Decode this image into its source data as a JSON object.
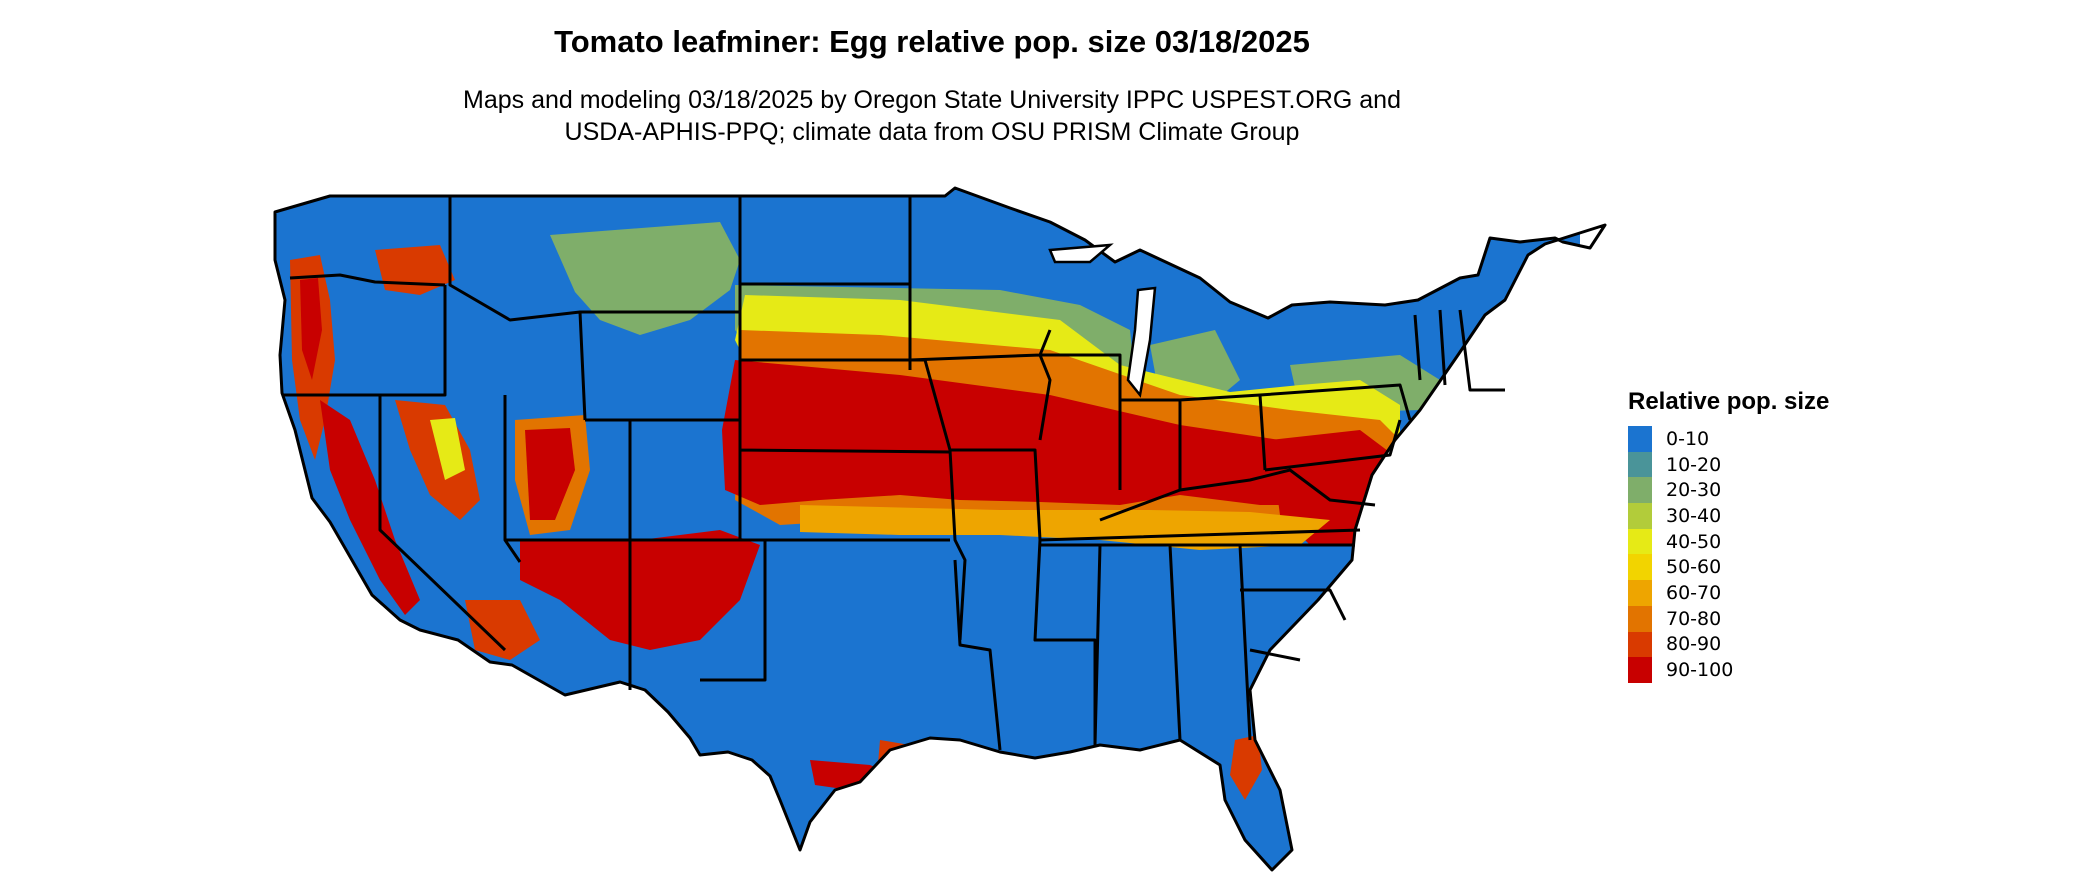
{
  "title": "Tomato leafminer: Egg relative pop. size 03/18/2025",
  "subtitle": {
    "line1": "Maps and modeling 03/18/2025 by Oregon State University IPPC USPEST.ORG and",
    "line2": "USDA-APHIS-PPQ; climate data from OSU PRISM Climate Group"
  },
  "legend": {
    "title": "Relative pop. size",
    "items": [
      {
        "label": "0-10",
        "color": "#1b74d0"
      },
      {
        "label": "10-20",
        "color": "#4a9499"
      },
      {
        "label": "20-30",
        "color": "#7fae6a"
      },
      {
        "label": "30-40",
        "color": "#b2cc3a"
      },
      {
        "label": "40-50",
        "color": "#e6ea16"
      },
      {
        "label": "50-60",
        "color": "#f2d400"
      },
      {
        "label": "60-70",
        "color": "#eea500"
      },
      {
        "label": "70-80",
        "color": "#e27400"
      },
      {
        "label": "80-90",
        "color": "#d93a00"
      },
      {
        "label": "90-100",
        "color": "#c80000"
      }
    ]
  }
}
